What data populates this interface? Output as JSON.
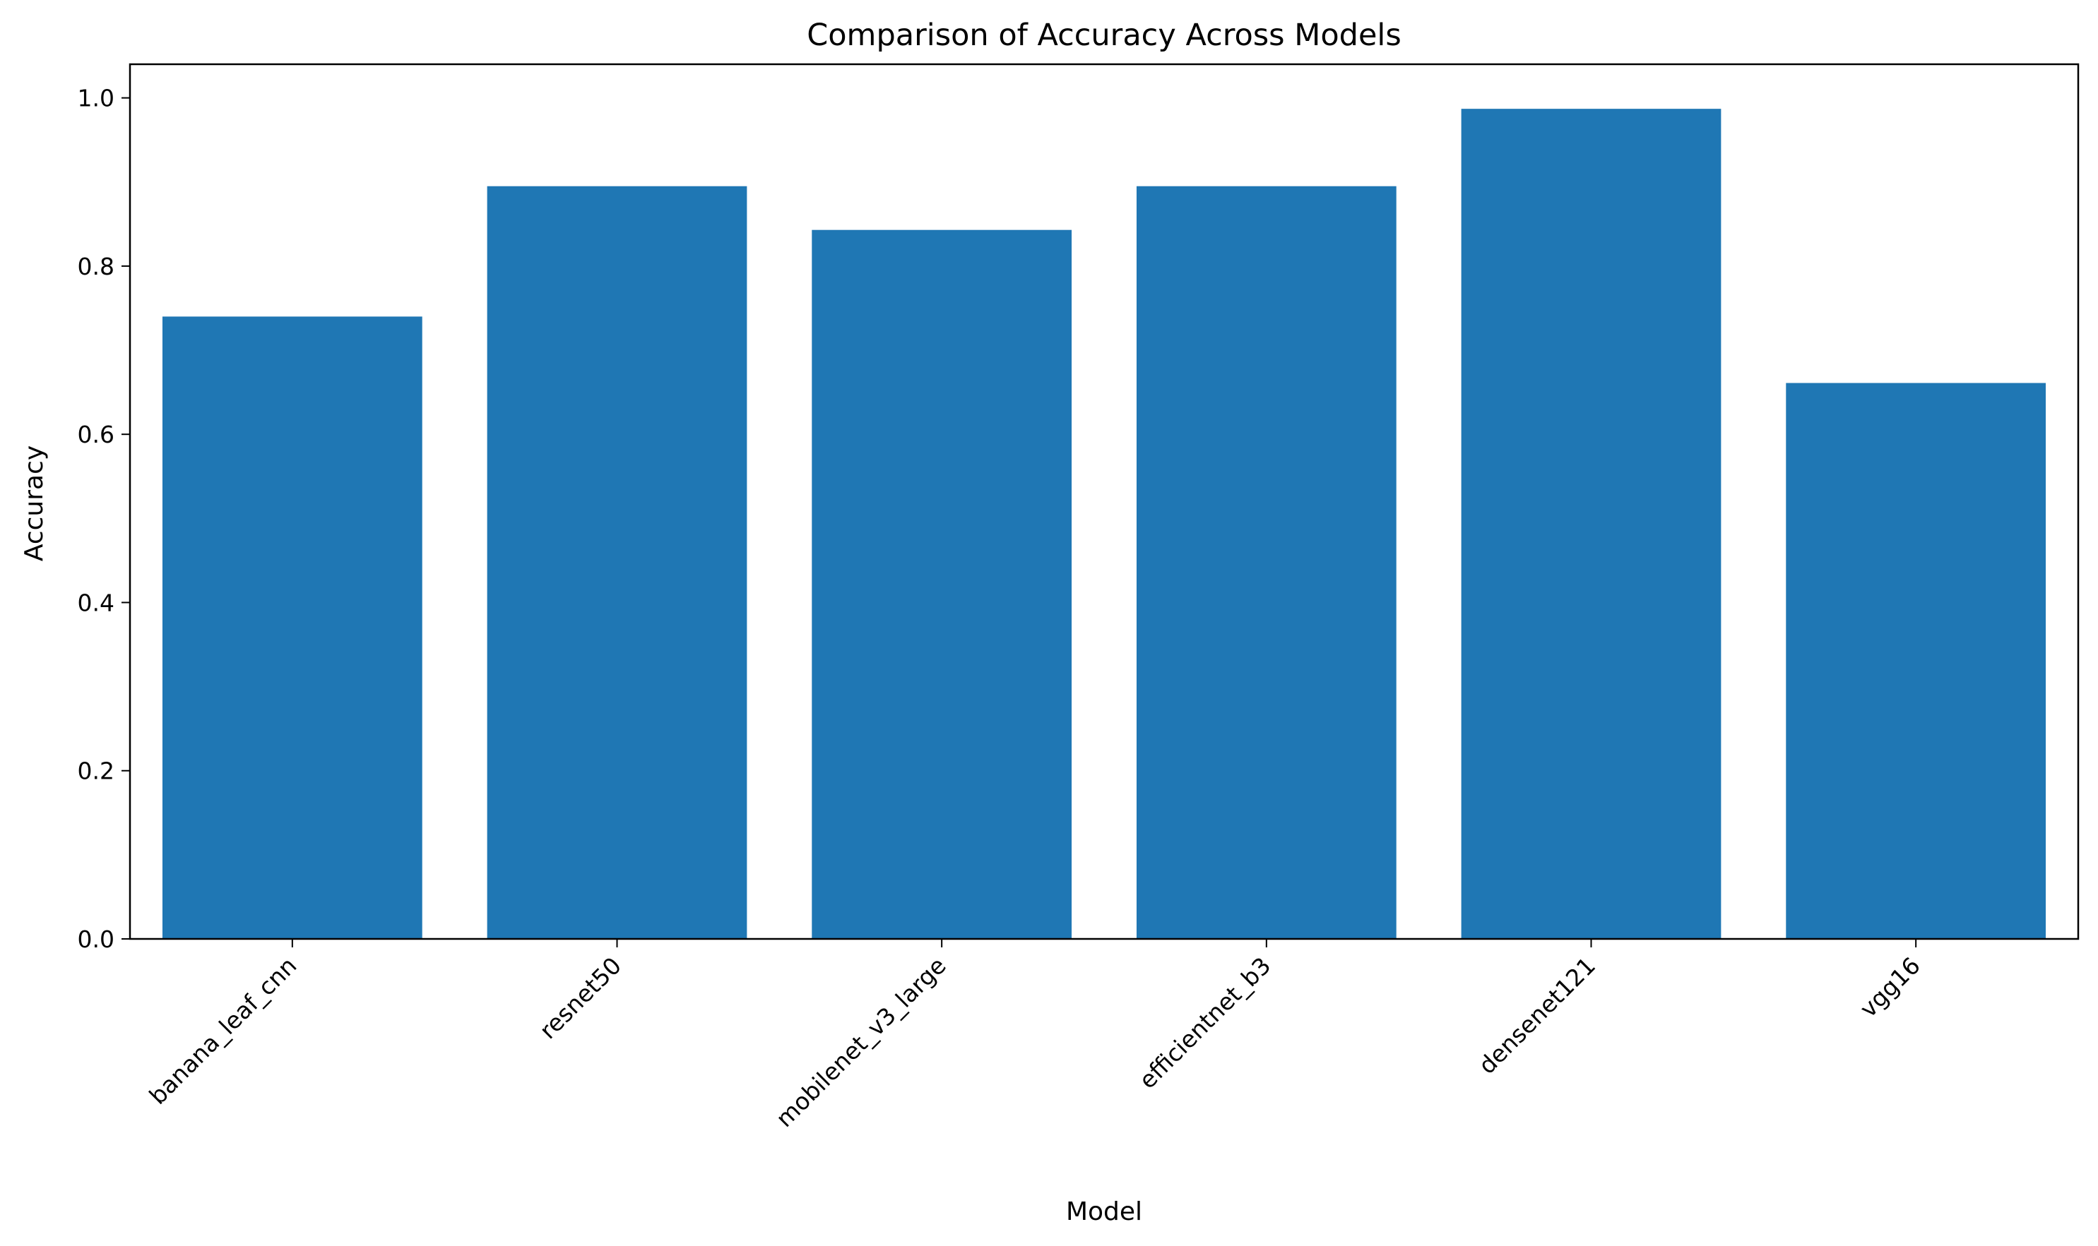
{
  "chart_data": {
    "type": "bar",
    "title": "Comparison of Accuracy Across Models",
    "xlabel": "Model",
    "ylabel": "Accuracy",
    "categories": [
      "banana_leaf_cnn",
      "resnet50",
      "mobilenet_v3_large",
      "efficientnet_b3",
      "densenet121",
      "vgg16"
    ],
    "values": [
      0.74,
      0.895,
      0.843,
      0.895,
      0.987,
      0.661
    ],
    "ylim": [
      0,
      1.04
    ],
    "yticks": [
      0.0,
      0.2,
      0.4,
      0.6,
      0.8,
      1.0
    ],
    "ytick_labels": [
      "0.0",
      "0.2",
      "0.4",
      "0.6",
      "0.8",
      "1.0"
    ],
    "grid": false,
    "bar_color": "#1f77b4"
  }
}
